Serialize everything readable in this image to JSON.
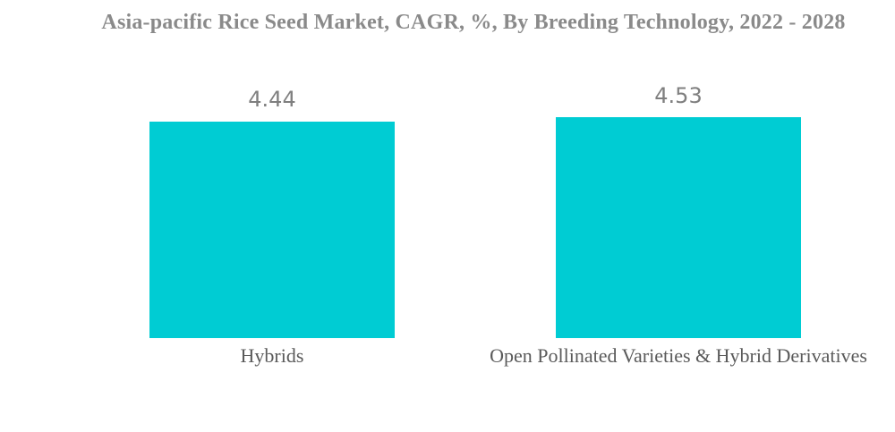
{
  "chart_data": {
    "type": "bar",
    "title": "Asia-pacific Rice Seed Market, CAGR, %, By Breeding Technology, 2022 - 2028",
    "categories": [
      "Hybrids",
      "Open Pollinated Varieties & Hybrid Derivatives"
    ],
    "values": [
      4.44,
      4.53
    ],
    "value_labels": [
      "4.44",
      "4.53"
    ],
    "xlabel": "",
    "ylabel": "",
    "ylim": [
      0,
      5
    ],
    "grid": false,
    "legend": "none",
    "axes_visible": false,
    "colors": {
      "bar": "#00CCD3",
      "title_text": "#8A8A8A",
      "value_text": "#7F7F7F",
      "category_text": "#5A5A5A",
      "background": "#FFFFFF"
    }
  }
}
